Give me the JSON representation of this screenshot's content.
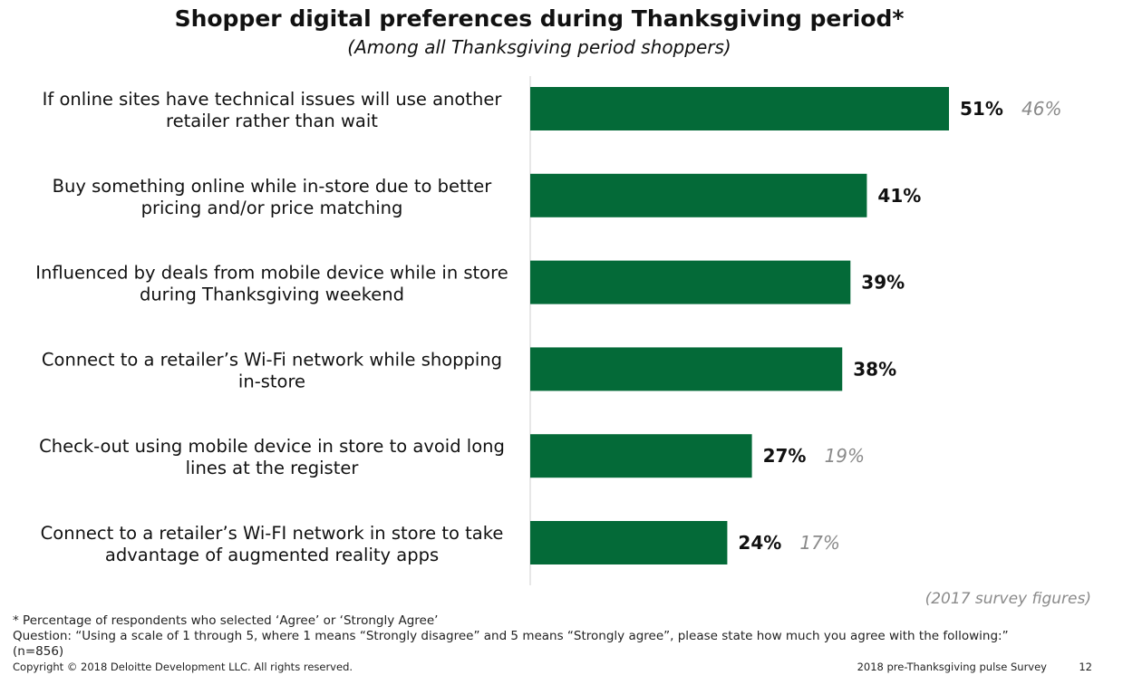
{
  "chart_data": {
    "type": "bar",
    "orientation": "horizontal",
    "title": "Shopper digital preferences during Thanksgiving period*",
    "subtitle": "(Among all Thanksgiving period shoppers)",
    "categories": [
      [
        "If online sites have technical issues will use another",
        "retailer rather than wait"
      ],
      [
        "Buy something online while in-store due to better",
        "pricing and/or price matching"
      ],
      [
        "Influenced by deals from mobile device while in store",
        "during Thanksgiving weekend"
      ],
      [
        "Connect to a retailer’s Wi-Fi network while shopping",
        "in-store"
      ],
      [
        "Check-out using mobile device in store to avoid long",
        "lines at the register"
      ],
      [
        "Connect to a retailer’s Wi-FI network in store to take",
        "advantage of augmented reality apps"
      ]
    ],
    "series": [
      {
        "values": [
          51,
          41,
          39,
          38,
          27,
          24
        ],
        "labels": [
          "51%",
          "41%",
          "39%",
          "38%",
          "27%",
          "24%"
        ],
        "color": "#046a38"
      },
      {
        "values": [
          46,
          null,
          null,
          null,
          19,
          17
        ],
        "labels": [
          "46%",
          "",
          "",
          "",
          "19%",
          "17%"
        ],
        "color": "#8a8a8a"
      }
    ],
    "xlim": [
      0,
      60
    ],
    "annotation": "(2017 survey figures)"
  },
  "footnotes": {
    "note1": "* Percentage of respondents who selected ‘Agree’ or ‘Strongly Agree’",
    "note2": "Question: “Using a scale of 1 through 5, where 1 means “Strongly disagree” and 5 means “Strongly agree”, please state how much you agree with the following:”",
    "note3": "(n=856)"
  },
  "footer": {
    "copyright": "Copyright © 2018 Deloitte Development LLC. All rights reserved.",
    "survey": "2018 pre-Thanksgiving pulse Survey",
    "page": "12"
  }
}
